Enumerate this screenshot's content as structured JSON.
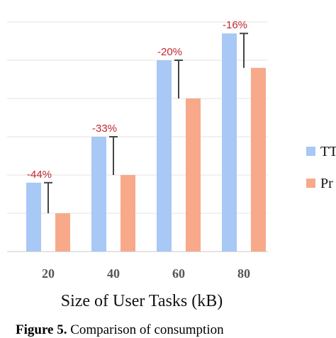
{
  "chart_data": {
    "type": "bar",
    "categories": [
      "20",
      "40",
      "60",
      "80"
    ],
    "series": [
      {
        "name": "TT",
        "color": "#a8c8f5",
        "values": [
          1.8,
          3.0,
          5.0,
          5.7
        ]
      },
      {
        "name": "Pr",
        "color": "#f7a98a",
        "values": [
          1.0,
          2.0,
          4.0,
          4.8
        ]
      }
    ],
    "reductions": [
      "-44%",
      "-33%",
      "-20%",
      "-16%"
    ],
    "xlabel": "Size of User Tasks (kB)",
    "ylabel": "",
    "ylim": [
      0,
      6
    ],
    "grid": true,
    "legend_position": "right",
    "annotation_color": "#c0272d"
  },
  "caption": {
    "prefix": "Figure 5.",
    "text": " Comparison of consumption"
  }
}
